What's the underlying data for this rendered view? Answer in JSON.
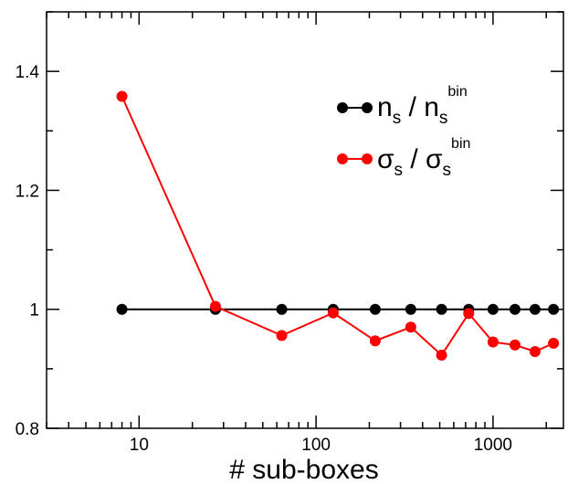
{
  "chart_data": {
    "type": "line",
    "title": "",
    "xlabel": "# sub-boxes",
    "ylabel": "",
    "x_scale": "log",
    "xlim": [
      3,
      2500
    ],
    "ylim": [
      0.8,
      1.5
    ],
    "x_ticks": [
      10,
      100,
      1000
    ],
    "x_tick_labels": [
      "10",
      "100",
      "1000"
    ],
    "y_ticks": [
      0.8,
      1.0,
      1.2,
      1.4
    ],
    "y_tick_labels": [
      "0.8",
      "1",
      "1.2",
      "1.4"
    ],
    "grid": false,
    "legend_position": "top-right",
    "legend": {
      "series1": {
        "main": "n",
        "sub": "s",
        "sep": " / ",
        "main2": "n",
        "sub2": "s",
        "sup2": "bin"
      },
      "series2": {
        "main": "σ",
        "sub": "s",
        "sep": " / ",
        "main2": "σ",
        "sub2": "s",
        "sup2": "bin"
      }
    },
    "series": [
      {
        "color": "#000000",
        "x": [
          8,
          27,
          64,
          125,
          216,
          343,
          512,
          729,
          1000,
          1331,
          1728,
          2197
        ],
        "y": [
          1.0,
          1.0,
          1.0,
          1.0,
          1.0,
          1.0,
          1.0,
          1.0,
          1.0,
          1.0,
          1.0,
          1.0
        ]
      },
      {
        "color": "#ff0000",
        "x": [
          8,
          27,
          64,
          125,
          216,
          343,
          512,
          729,
          1000,
          1331,
          1728,
          2197
        ],
        "y": [
          1.358,
          1.005,
          0.956,
          0.994,
          0.947,
          0.97,
          0.923,
          0.993,
          0.945,
          0.94,
          0.929,
          0.943
        ]
      }
    ]
  }
}
